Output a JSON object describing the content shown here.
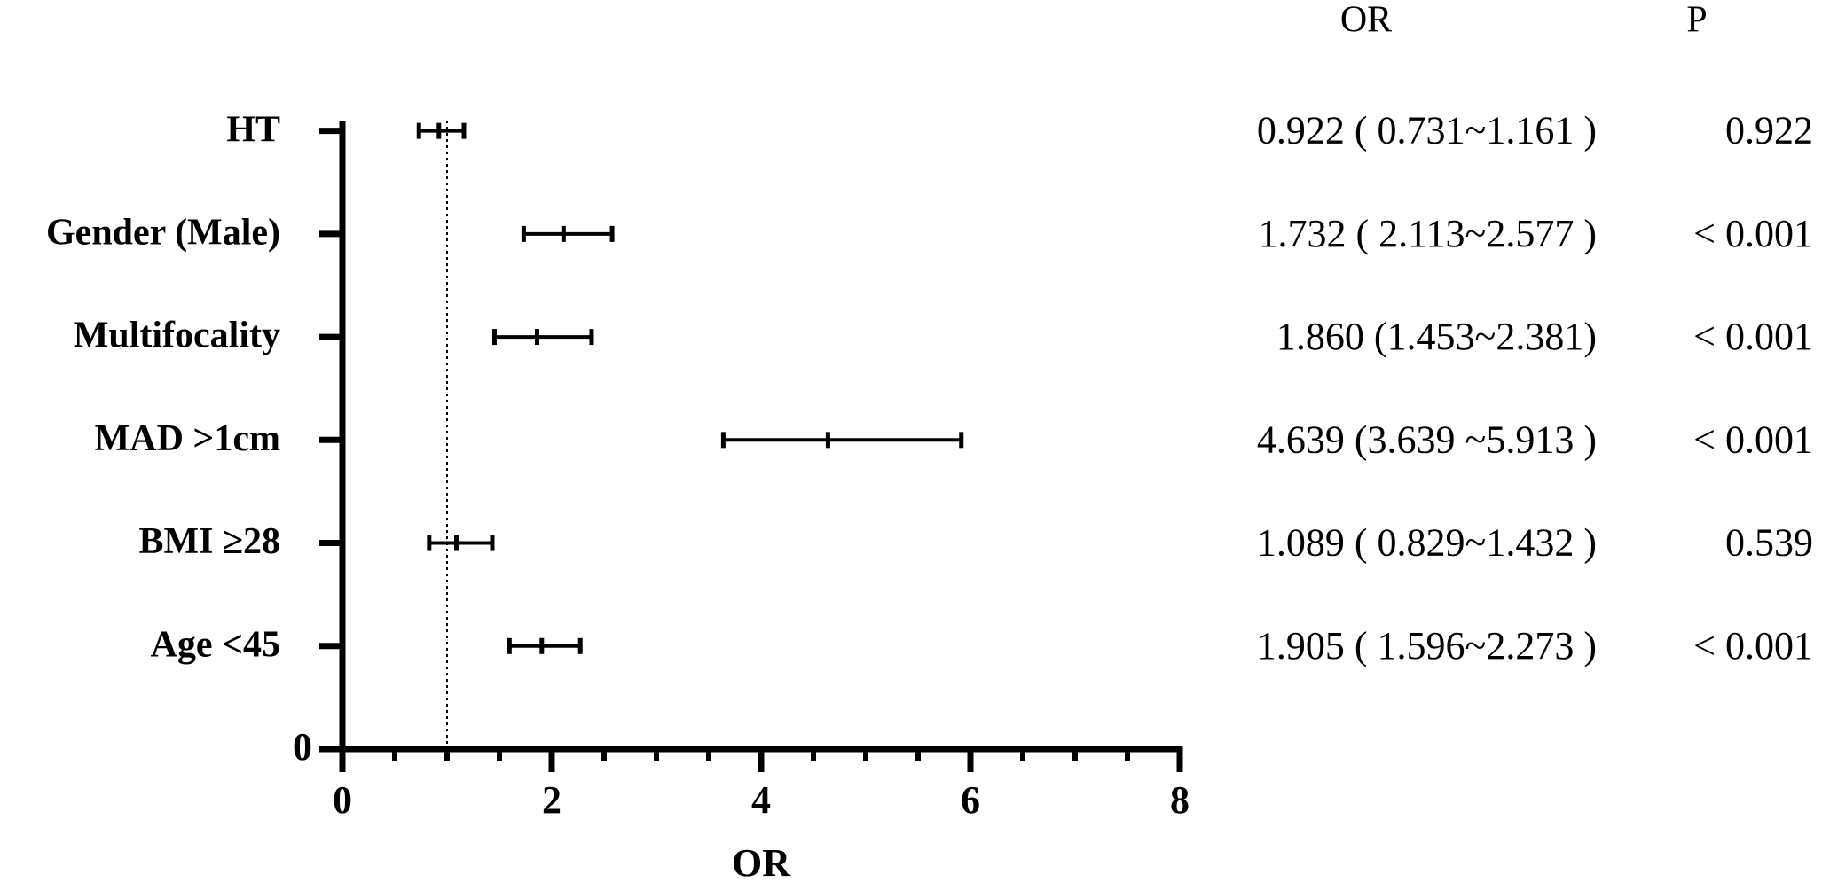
{
  "chart_data": {
    "type": "forest",
    "categories": [
      "HT",
      "Gender (Male)",
      "Multifocality",
      "MAD >1cm",
      "BMI ≥28",
      "Age <45"
    ],
    "or": [
      0.922,
      1.732,
      1.86,
      4.639,
      1.089,
      1.905
    ],
    "lower": [
      0.731,
      2.113,
      1.453,
      3.639,
      0.829,
      1.596
    ],
    "upper": [
      1.161,
      2.577,
      2.381,
      5.913,
      1.432,
      2.273
    ],
    "value_labels": [
      "0.922 ( 0.731~1.161 )",
      "1.732 ( 2.113~2.577 )",
      "1.860 (1.453~2.381)",
      "4.639 (3.639 ~5.913 )",
      "1.089 ( 0.829~1.432 )",
      "1.905 ( 1.596~2.273 )"
    ],
    "p_labels": [
      "0.922",
      "< 0.001",
      "< 0.001",
      "< 0.001",
      "0.539",
      "< 0.001"
    ],
    "or_header": "OR",
    "p_header": "P",
    "x_label": "OR",
    "xlim": [
      0,
      8
    ],
    "xticks": [
      0,
      2,
      4,
      6,
      8
    ],
    "xminorticks": [
      0.5,
      1,
      1.5,
      2.5,
      3,
      3.5,
      4.5,
      5,
      5.5,
      6.5,
      7,
      7.5
    ],
    "ylim": [
      0,
      6.1
    ],
    "yticks": [
      0
    ],
    "reference_line": 1,
    "color": "#000000"
  }
}
